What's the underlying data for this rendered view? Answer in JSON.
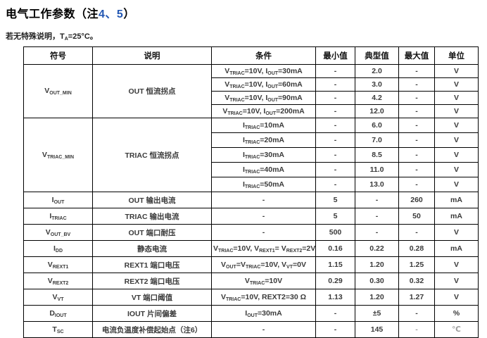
{
  "page": {
    "title_prefix": "电气工作参数（注",
    "title_note_numbers": "4、5",
    "title_suffix": "）",
    "condition_note": "若无特殊说明，T~A~=25°C。"
  },
  "colors": {
    "note_accent": "#2458b3",
    "body_text": "#3a3a3a",
    "border": "#000000"
  },
  "table": {
    "headers": [
      "符号",
      "说明",
      "条件",
      "最小值",
      "典型值",
      "最大值",
      "单位"
    ],
    "groups": [
      {
        "symbol": "V~OUT_MIN~",
        "description": "OUT 恒流拐点",
        "subrows": [
          {
            "condition": "V~TRIAC~=10V, I~OUT~=30mA",
            "min": "-",
            "typ": "2.0",
            "max": "-",
            "unit": "V"
          },
          {
            "condition": "V~TRIAC~=10V, I~OUT~=60mA",
            "min": "-",
            "typ": "3.0",
            "max": "-",
            "unit": "V"
          },
          {
            "condition": "V~TRIAC~=10V, I~OUT~=90mA",
            "min": "-",
            "typ": "4.2",
            "max": "-",
            "unit": "V"
          },
          {
            "condition": "V~TRIAC~=10V, I~OUT~=200mA",
            "min": "-",
            "typ": "12.0",
            "max": "-",
            "unit": "V"
          }
        ]
      },
      {
        "symbol": "V~TRIAC_MIN~",
        "description": "TRIAC 恒流拐点",
        "subrows": [
          {
            "condition": "I~TRIAC~=10mA",
            "min": "-",
            "typ": "6.0",
            "max": "-",
            "unit": "V"
          },
          {
            "condition": "I~TRIAC~=20mA",
            "min": "-",
            "typ": "7.0",
            "max": "-",
            "unit": "V"
          },
          {
            "condition": "I~TRIAC~=30mA",
            "min": "-",
            "typ": "8.5",
            "max": "-",
            "unit": "V"
          },
          {
            "condition": "I~TRIAC~=40mA",
            "min": "-",
            "typ": "11.0",
            "max": "-",
            "unit": "V"
          },
          {
            "condition": "I~TRIAC~=50mA",
            "min": "-",
            "typ": "13.0",
            "max": "-",
            "unit": "V"
          }
        ]
      },
      {
        "symbol": "I~OUT~",
        "description": "OUT 输出电流",
        "subrows": [
          {
            "condition": "-",
            "min": "5",
            "typ": "-",
            "max": "260",
            "unit": "mA"
          }
        ]
      },
      {
        "symbol": "I~TRIAC~",
        "description": "TRIAC 输出电流",
        "subrows": [
          {
            "condition": "-",
            "min": "5",
            "typ": "-",
            "max": "50",
            "unit": "mA"
          }
        ]
      },
      {
        "symbol": "V~OUT_BV~",
        "description": "OUT 端口耐压",
        "subrows": [
          {
            "condition": "-",
            "min": "500",
            "typ": "-",
            "max": "-",
            "unit": "V"
          }
        ]
      },
      {
        "symbol": "I~DD~",
        "description": "静态电流",
        "subrows": [
          {
            "condition": "V~TRIAC~=10V, V~REXT1~= V~REXT2~=2V",
            "min": "0.16",
            "typ": "0.22",
            "max": "0.28",
            "unit": "mA"
          }
        ]
      },
      {
        "symbol": "V~REXT1~",
        "description": "REXT1 端口电压",
        "subrows": [
          {
            "condition": "V~OUT~=V~TRIAC~=10V, V~VT~=0V",
            "min": "1.15",
            "typ": "1.20",
            "max": "1.25",
            "unit": "V"
          }
        ]
      },
      {
        "symbol": "V~REXT2~",
        "description": "REXT2 端口电压",
        "subrows": [
          {
            "condition": "V~TRIAC~=10V",
            "min": "0.29",
            "typ": "0.30",
            "max": "0.32",
            "unit": "V"
          }
        ]
      },
      {
        "symbol": "V~VT~",
        "description": "VT 端口阈值",
        "subrows": [
          {
            "condition": "V~TRIAC~=10V, REXT2=30 Ω",
            "min": "1.13",
            "typ": "1.20",
            "max": "1.27",
            "unit": "V"
          }
        ]
      },
      {
        "symbol": "D~IOUT~",
        "description": "IOUT 片间偏差",
        "subrows": [
          {
            "condition": "I~OUT~=30mA",
            "min": "-",
            "typ": "±5",
            "max": "-",
            "unit": "%"
          }
        ]
      },
      {
        "symbol": "T~SC~",
        "description": "电流负温度补偿起始点（注6）",
        "subrows": [
          {
            "condition": "-",
            "min": "-",
            "typ": "145",
            "max": "-",
            "unit": "℃",
            "faded": true
          }
        ]
      }
    ]
  }
}
